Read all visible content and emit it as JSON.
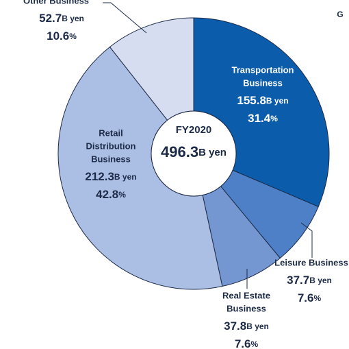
{
  "chart_data": {
    "type": "donut",
    "center_title": "FY2020",
    "total": 496.3,
    "unit": "B yen",
    "percent_unit": "%",
    "note": "G",
    "categories": [
      [
        "Transportation",
        "Business"
      ],
      [
        "Leisure Business"
      ],
      [
        "Real Estate",
        "Business"
      ],
      [
        "Retail",
        "Distribution",
        "Business"
      ],
      [
        "Other Business"
      ]
    ],
    "values": [
      155.8,
      37.7,
      37.8,
      212.3,
      52.7
    ],
    "percents": [
      31.4,
      7.6,
      7.6,
      42.8,
      10.6
    ],
    "colors": [
      "#0b5cab",
      "#4d80c6",
      "#7597d1",
      "#abbee4",
      "#d6ddf0"
    ]
  }
}
